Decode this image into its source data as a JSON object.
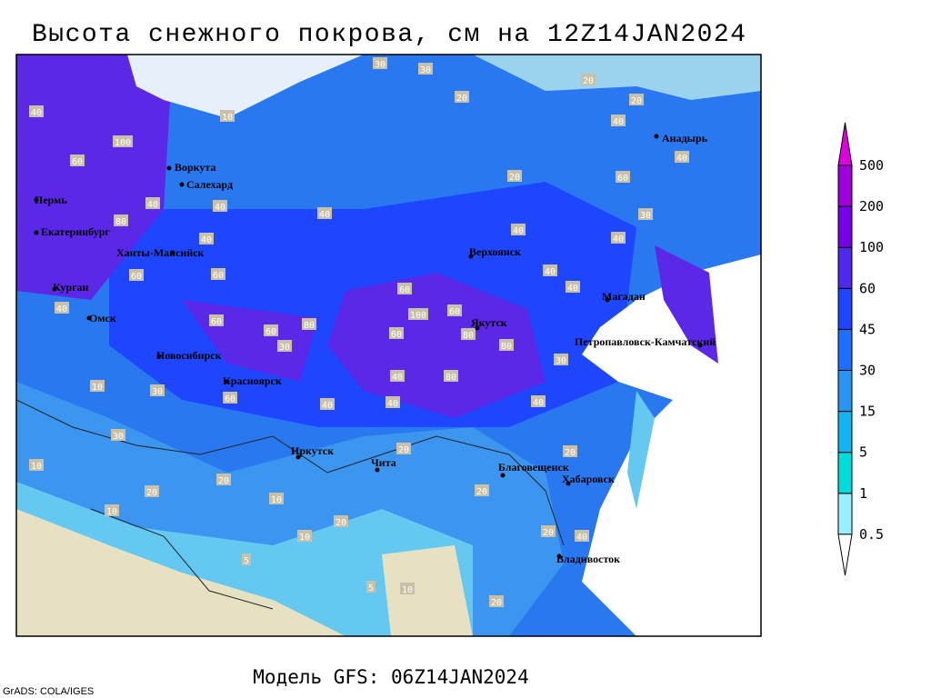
{
  "header": {
    "title": "Высота снежного покрова, см на 12Z14JAN2024"
  },
  "footer": {
    "model": "Модель GFS: 06Z14JAN2024",
    "credit": "GrADS: COLA/IGES"
  },
  "legend": {
    "levels": [
      0.5,
      1,
      5,
      15,
      30,
      45,
      60,
      100,
      200,
      500
    ],
    "colors": [
      "#ffffff",
      "#96f0ff",
      "#00dcdc",
      "#14b4f0",
      "#2896f0",
      "#1e6eff",
      "#1e46ff",
      "#5028f0",
      "#7800e6",
      "#a000dc",
      "#dc00dc"
    ]
  },
  "cities": [
    "Воркута",
    "Салехард",
    "Пермь",
    "Екатеринбург",
    "Ханты-Мансийск",
    "Курган",
    "Омск",
    "Новосибирск",
    "Красноярск",
    "Иркутск",
    "Чита",
    "Благовещенск",
    "Хабаровск",
    "Владивосток",
    "Якутск",
    "Верхоянск",
    "Магадан",
    "Петропавловск-Камчатский",
    "Анадырь"
  ],
  "contour_labels": [
    40,
    100,
    60,
    40,
    80,
    40,
    40,
    60,
    60,
    40,
    60,
    60,
    30,
    80,
    60,
    100,
    60,
    60,
    80,
    80,
    80,
    40,
    40,
    40,
    60,
    10,
    30,
    30,
    20,
    20,
    10,
    20,
    10,
    5,
    5,
    10,
    20,
    20,
    20,
    40,
    40,
    40,
    40,
    30,
    40,
    20,
    20,
    30,
    30,
    20,
    20,
    40,
    10,
    40,
    40,
    60,
    10,
    10,
    40,
    30,
    20,
    20
  ]
}
